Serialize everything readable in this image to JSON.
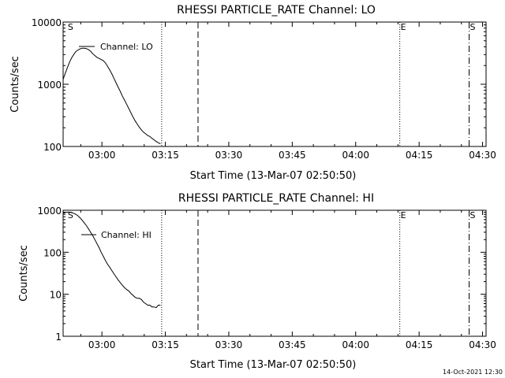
{
  "footer_timestamp": "14-Oct-2021 12:30",
  "chart_data": [
    {
      "type": "line",
      "title": "RHESSI PARTICLE_RATE Channel: LO",
      "xlabel": "Start Time (13-Mar-07 02:50:50)",
      "ylabel": "Counts/sec",
      "yscale": "log",
      "ylim": [
        100,
        10000
      ],
      "xlim_minutes": [
        0,
        100
      ],
      "x_ticks": [
        {
          "min": 9.17,
          "label": "03:00"
        },
        {
          "min": 24.17,
          "label": "03:15"
        },
        {
          "min": 39.17,
          "label": "03:30"
        },
        {
          "min": 54.17,
          "label": "03:45"
        },
        {
          "min": 69.17,
          "label": "04:00"
        },
        {
          "min": 84.17,
          "label": "04:15"
        },
        {
          "min": 99.17,
          "label": "04:30"
        }
      ],
      "y_ticks": [
        {
          "value": 100,
          "label": "100"
        },
        {
          "value": 1000,
          "label": "1000"
        },
        {
          "value": 10000,
          "label": "10000"
        }
      ],
      "series": [
        {
          "name": "Channel: LO",
          "x": [
            0,
            0.5,
            1,
            1.5,
            2,
            2.5,
            3,
            3.5,
            4,
            4.5,
            5,
            5.5,
            6,
            6.5,
            7,
            7.5,
            8,
            8.5,
            9,
            9.5,
            10,
            10.5,
            11,
            11.5,
            12,
            12.5,
            13,
            13.5,
            14,
            14.5,
            15,
            15.5,
            16,
            16.5,
            17,
            17.5,
            18,
            18.5,
            19,
            19.5,
            20,
            20.5,
            21,
            21.5,
            22,
            22.5,
            23
          ],
          "values": [
            1200,
            1500,
            1850,
            2250,
            2650,
            3000,
            3350,
            3550,
            3700,
            3800,
            3800,
            3750,
            3600,
            3400,
            3100,
            2900,
            2700,
            2600,
            2500,
            2400,
            2200,
            1950,
            1700,
            1480,
            1250,
            1060,
            900,
            770,
            650,
            560,
            480,
            410,
            350,
            300,
            260,
            230,
            205,
            185,
            170,
            160,
            150,
            145,
            135,
            128,
            120,
            115,
            110
          ]
        }
      ],
      "markers": [
        {
          "min": 23.3,
          "style": "dotted",
          "label": ""
        },
        {
          "min": 31.9,
          "style": "dashed",
          "label": ""
        },
        {
          "min": 0.9,
          "style": "none",
          "label": "S"
        },
        {
          "min": 79.6,
          "style": "dotted",
          "label": "E"
        },
        {
          "min": 96.0,
          "style": "dashdot",
          "label": "S"
        }
      ]
    },
    {
      "type": "line",
      "title": "RHESSI PARTICLE_RATE Channel: HI",
      "xlabel": "Start Time (13-Mar-07 02:50:50)",
      "ylabel": "Counts/sec",
      "yscale": "log",
      "ylim": [
        1,
        1000
      ],
      "xlim_minutes": [
        0,
        100
      ],
      "x_ticks": [
        {
          "min": 9.17,
          "label": "03:00"
        },
        {
          "min": 24.17,
          "label": "03:15"
        },
        {
          "min": 39.17,
          "label": "03:30"
        },
        {
          "min": 54.17,
          "label": "03:45"
        },
        {
          "min": 69.17,
          "label": "04:00"
        },
        {
          "min": 84.17,
          "label": "04:15"
        },
        {
          "min": 99.17,
          "label": "04:30"
        }
      ],
      "y_ticks": [
        {
          "value": 1,
          "label": "1"
        },
        {
          "value": 10,
          "label": "10"
        },
        {
          "value": 100,
          "label": "100"
        },
        {
          "value": 1000,
          "label": "1000"
        }
      ],
      "series": [
        {
          "name": "Channel: HI",
          "x": [
            0,
            0.5,
            1,
            1.5,
            2,
            2.5,
            3,
            3.5,
            4,
            4.5,
            5,
            5.5,
            6,
            6.5,
            7,
            7.5,
            8,
            8.5,
            9,
            9.5,
            10,
            10.5,
            11,
            11.5,
            12,
            12.5,
            13,
            13.5,
            14,
            14.5,
            15,
            15.5,
            16,
            16.5,
            17,
            17.5,
            18,
            18.5,
            19,
            19.5,
            20,
            20.5,
            21,
            21.5,
            22,
            22.5,
            23
          ],
          "values": [
            850,
            880,
            900,
            900,
            880,
            850,
            800,
            740,
            660,
            580,
            500,
            430,
            360,
            300,
            250,
            200,
            160,
            128,
            100,
            80,
            64,
            52,
            44,
            37,
            31,
            26,
            22,
            19,
            16.5,
            14.5,
            13,
            12,
            10.5,
            9.5,
            8.5,
            8,
            8,
            7.5,
            6.5,
            6,
            5.5,
            5.5,
            5,
            5,
            4.8,
            5.5,
            5.5
          ]
        }
      ],
      "markers": [
        {
          "min": 23.3,
          "style": "dotted",
          "label": ""
        },
        {
          "min": 31.9,
          "style": "dashed",
          "label": ""
        },
        {
          "min": 0.9,
          "style": "none",
          "label": "S"
        },
        {
          "min": 79.6,
          "style": "dotted",
          "label": "E"
        },
        {
          "min": 96.0,
          "style": "dashdot",
          "label": "S"
        }
      ]
    }
  ]
}
